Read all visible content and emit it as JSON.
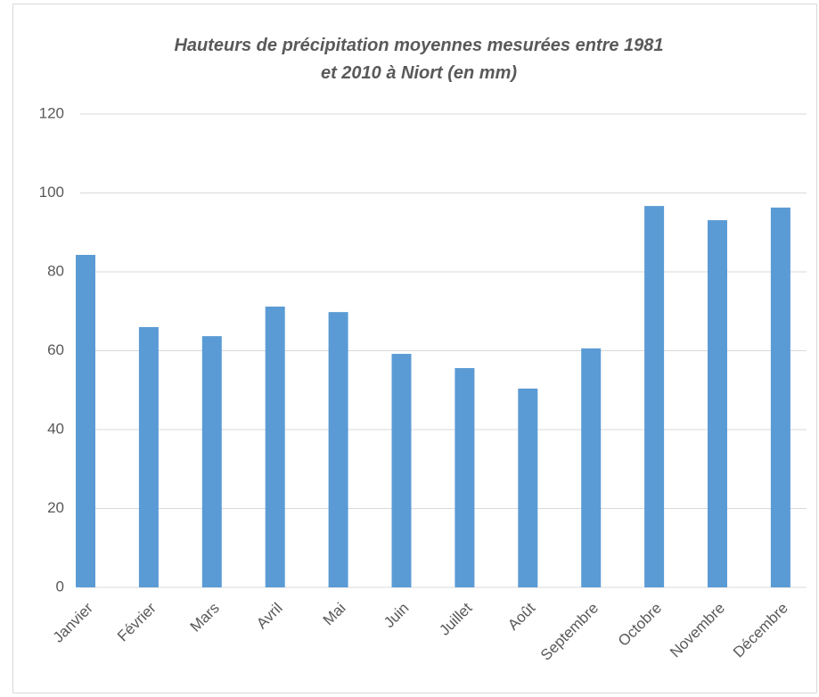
{
  "chart_data": {
    "type": "bar",
    "title": "Hauteurs de précipitation moyennes mesurées entre 1981 et 2010 à Niort (en mm)",
    "categories": [
      "Janvier",
      "Février",
      "Mars",
      "Avril",
      "Mai",
      "Juin",
      "Juillet",
      "Août",
      "Septembre",
      "Octobre",
      "Novembre",
      "Décembre"
    ],
    "values": [
      84.3,
      66.0,
      63.7,
      71.2,
      69.8,
      59.2,
      55.6,
      50.4,
      60.6,
      96.7,
      93.1,
      96.3
    ],
    "color": "#5b9bd5",
    "ylim": [
      0,
      120
    ],
    "yticks": [
      0,
      20,
      40,
      60,
      80,
      100,
      120
    ],
    "grid": true
  }
}
